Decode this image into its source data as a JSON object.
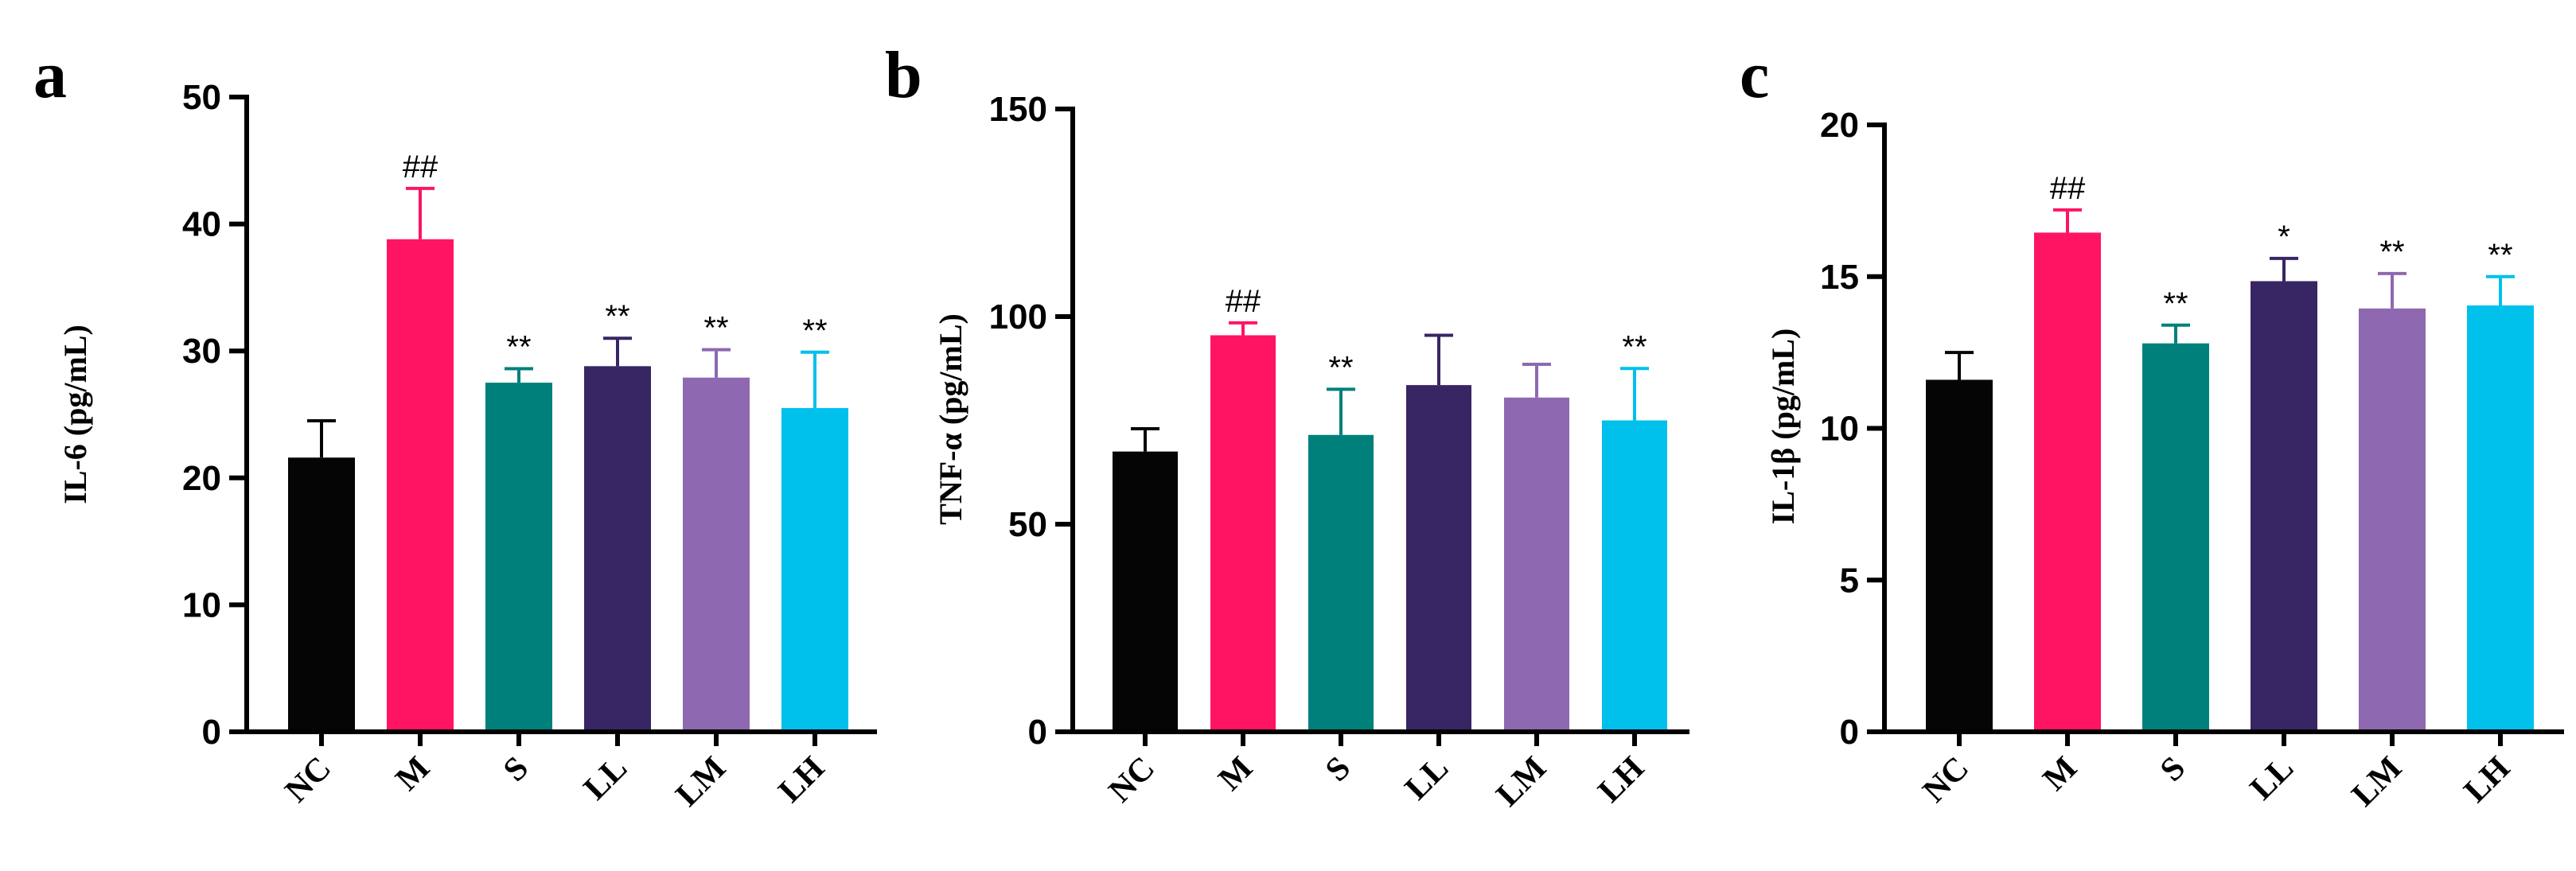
{
  "chart_data": [
    {
      "type": "bar",
      "panel": "a",
      "title": "",
      "xlabel": "",
      "ylabel": "IL-6 (pg/mL)",
      "ylim": [
        0,
        50
      ],
      "yticks": [
        0,
        10,
        20,
        30,
        40,
        50
      ],
      "categories": [
        "NC",
        "M",
        "S",
        "LL",
        "LM",
        "LH"
      ],
      "values": [
        21.6,
        38.8,
        27.5,
        28.8,
        27.9,
        25.5
      ],
      "errors": [
        2.9,
        4.0,
        1.1,
        2.2,
        2.2,
        4.4
      ],
      "significance": [
        "",
        "##",
        "**",
        "**",
        "**",
        "**"
      ],
      "colors": [
        "#050505",
        "#ff1464",
        "#00807a",
        "#382564",
        "#8e68b0",
        "#00c0ec"
      ]
    },
    {
      "type": "bar",
      "panel": "b",
      "title": "",
      "xlabel": "",
      "ylabel": "TNF-α (pg/mL)",
      "ylim": [
        0,
        150
      ],
      "yticks": [
        0,
        50,
        100,
        150
      ],
      "categories": [
        "NC",
        "M",
        "S",
        "LL",
        "LM",
        "LH"
      ],
      "values": [
        67.5,
        95.5,
        71.5,
        83.5,
        80.5,
        75
      ],
      "errors": [
        5.5,
        3.0,
        11.0,
        12.0,
        8.0,
        12.5
      ],
      "significance": [
        "",
        "##",
        "**",
        "",
        "",
        "**"
      ],
      "colors": [
        "#050505",
        "#ff1464",
        "#00807a",
        "#382564",
        "#8e68b0",
        "#00c0ec"
      ]
    },
    {
      "type": "bar",
      "panel": "c",
      "title": "",
      "xlabel": "",
      "ylabel": "IL-1β (pg/mL)",
      "ylim": [
        0,
        20
      ],
      "yticks": [
        0,
        5,
        10,
        15,
        20
      ],
      "categories": [
        "NC",
        "M",
        "S",
        "LL",
        "LM",
        "LH"
      ],
      "values": [
        11.6,
        16.45,
        12.8,
        14.85,
        13.95,
        14.05
      ],
      "errors": [
        0.9,
        0.75,
        0.6,
        0.75,
        1.15,
        0.95
      ],
      "significance": [
        "",
        "##",
        "**",
        "*",
        "**",
        "**"
      ],
      "colors": [
        "#050505",
        "#ff1464",
        "#00807a",
        "#382564",
        "#8e68b0",
        "#00c0ec"
      ]
    }
  ]
}
